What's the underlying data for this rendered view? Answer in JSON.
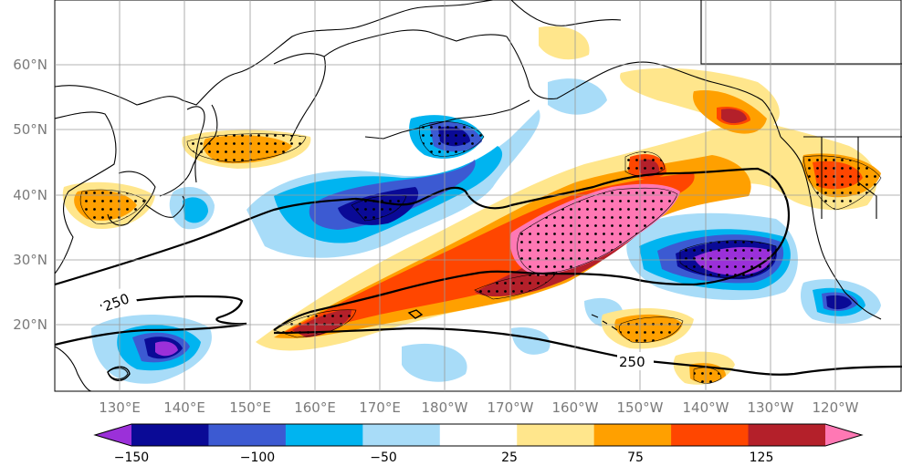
{
  "map": {
    "lon_labels": [
      "130°E",
      "140°E",
      "150°E",
      "160°E",
      "170°E",
      "180°W",
      "170°W",
      "160°W",
      "150°W",
      "140°W",
      "130°W",
      "120°W"
    ],
    "lat_labels": [
      "60°N",
      "50°N",
      "40°N",
      "30°N",
      "20°N"
    ],
    "contour_labels": [
      "250",
      "250"
    ]
  },
  "colorbar": {
    "tick_labels": [
      "−150",
      "−100",
      "−50",
      "25",
      "75",
      "125"
    ],
    "colors": [
      "#9b30d9",
      "#0a0a96",
      "#3c5ad2",
      "#00b4f0",
      "#a8dcf8",
      "#ffffff",
      "#ffe68c",
      "#ffa000",
      "#ff4600",
      "#b4202a",
      "#ff78b4"
    ]
  }
}
